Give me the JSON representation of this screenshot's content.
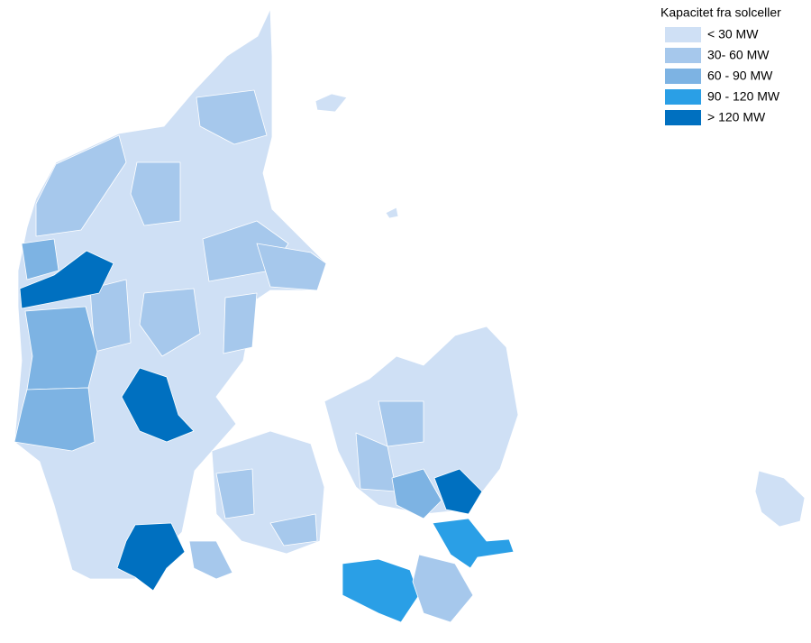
{
  "legend": {
    "title": "Kapacitet fra solceller",
    "classes": [
      {
        "label": "< 30 MW",
        "color": "#cfe0f5"
      },
      {
        "label": "30- 60 MW",
        "color": "#a6c8ec"
      },
      {
        "label": "60 - 90 MW",
        "color": "#7db3e3"
      },
      {
        "label": "90 - 120 MW",
        "color": "#2a9fe6"
      },
      {
        "label": "> 120 MW",
        "color": "#0070c0"
      }
    ]
  }
}
